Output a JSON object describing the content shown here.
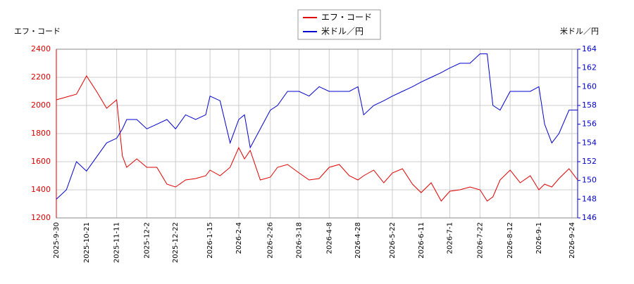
{
  "chart_data": {
    "type": "line",
    "y_label": "エフ・コード",
    "y2_label": "米ドル／円",
    "x": [
      "2025-9-30",
      "2025-10-7",
      "2025-10-14",
      "2025-10-21",
      "2025-10-28",
      "2025-11-4",
      "2025-11-11",
      "2025-11-15",
      "2025-11-18",
      "2025-11-25",
      "2025-12-2",
      "2025-12-9",
      "2025-12-16",
      "2025-12-22",
      "2025-12-29",
      "2026-1-5",
      "2026-1-12",
      "2026-1-15",
      "2026-1-22",
      "2026-1-29",
      "2026-2-4",
      "2026-2-8",
      "2026-2-12",
      "2026-2-19",
      "2026-2-26",
      "2026-3-3",
      "2026-3-10",
      "2026-3-18",
      "2026-3-25",
      "2026-4-1",
      "2026-4-8",
      "2026-4-15",
      "2026-4-22",
      "2026-4-28",
      "2026-5-2",
      "2026-5-9",
      "2026-5-16",
      "2026-5-22",
      "2026-5-29",
      "2026-6-5",
      "2026-6-11",
      "2026-6-18",
      "2026-6-25",
      "2026-7-1",
      "2026-7-8",
      "2026-7-15",
      "2026-7-22",
      "2026-7-27",
      "2026-7-31",
      "2026-8-5",
      "2026-8-12",
      "2026-8-19",
      "2026-8-26",
      "2026-9-1",
      "2026-9-5",
      "2026-9-10",
      "2026-9-15",
      "2026-9-22",
      "2026-9-28"
    ],
    "series": [
      {
        "name": "エフ・コード",
        "color": "#dd0000",
        "axis": "y",
        "values": [
          2040,
          2060,
          2080,
          2210,
          2100,
          1980,
          2040,
          1640,
          1560,
          1620,
          1560,
          1560,
          1440,
          1420,
          1470,
          1480,
          1500,
          1540,
          1500,
          1560,
          1700,
          1620,
          1680,
          1470,
          1490,
          1560,
          1580,
          1520,
          1470,
          1480,
          1560,
          1580,
          1500,
          1470,
          1500,
          1540,
          1450,
          1520,
          1550,
          1440,
          1380,
          1450,
          1320,
          1390,
          1400,
          1420,
          1400,
          1320,
          1350,
          1470,
          1540,
          1450,
          1500,
          1400,
          1440,
          1420,
          1480,
          1550,
          1470
        ]
      },
      {
        "name": "米ドル／円",
        "color": "#0000cc",
        "axis": "y2",
        "values": [
          148,
          149,
          152,
          151,
          152.5,
          154,
          154.5,
          155.5,
          156.5,
          156.5,
          155.5,
          156,
          156.5,
          155.5,
          157,
          156.5,
          157,
          159,
          158.5,
          154,
          156.5,
          157,
          153.5,
          155.5,
          157.5,
          158,
          159.5,
          159.5,
          159,
          160,
          159.5,
          159.5,
          159.5,
          160,
          157,
          158,
          158.5,
          159,
          159.5,
          160,
          160.5,
          161,
          161.5,
          162,
          162.5,
          162.5,
          163.5,
          163.5,
          158,
          157.5,
          159.5,
          159.5,
          159.5,
          160,
          156,
          154,
          155,
          157.5,
          157.5
        ]
      }
    ],
    "xlim": [
      "2025-9-30",
      "2026-9-28"
    ],
    "xticks": [
      "2025-9-30",
      "2025-10-21",
      "2025-11-11",
      "2025-12-2",
      "2025-12-22",
      "2026-1-15",
      "2026-2-4",
      "2026-2-26",
      "2026-3-18",
      "2026-4-8",
      "2026-4-28",
      "2026-5-22",
      "2026-6-11",
      "2026-7-1",
      "2026-7-22",
      "2026-8-12",
      "2026-9-1",
      "2026-9-24"
    ],
    "ylim": [
      1200,
      2400
    ],
    "yticks": [
      1200,
      1400,
      1600,
      1800,
      2000,
      2200,
      2400
    ],
    "y2lim": [
      146,
      164
    ],
    "y2ticks": [
      146,
      148,
      150,
      152,
      154,
      156,
      158,
      160,
      162,
      164
    ],
    "grid": true
  }
}
